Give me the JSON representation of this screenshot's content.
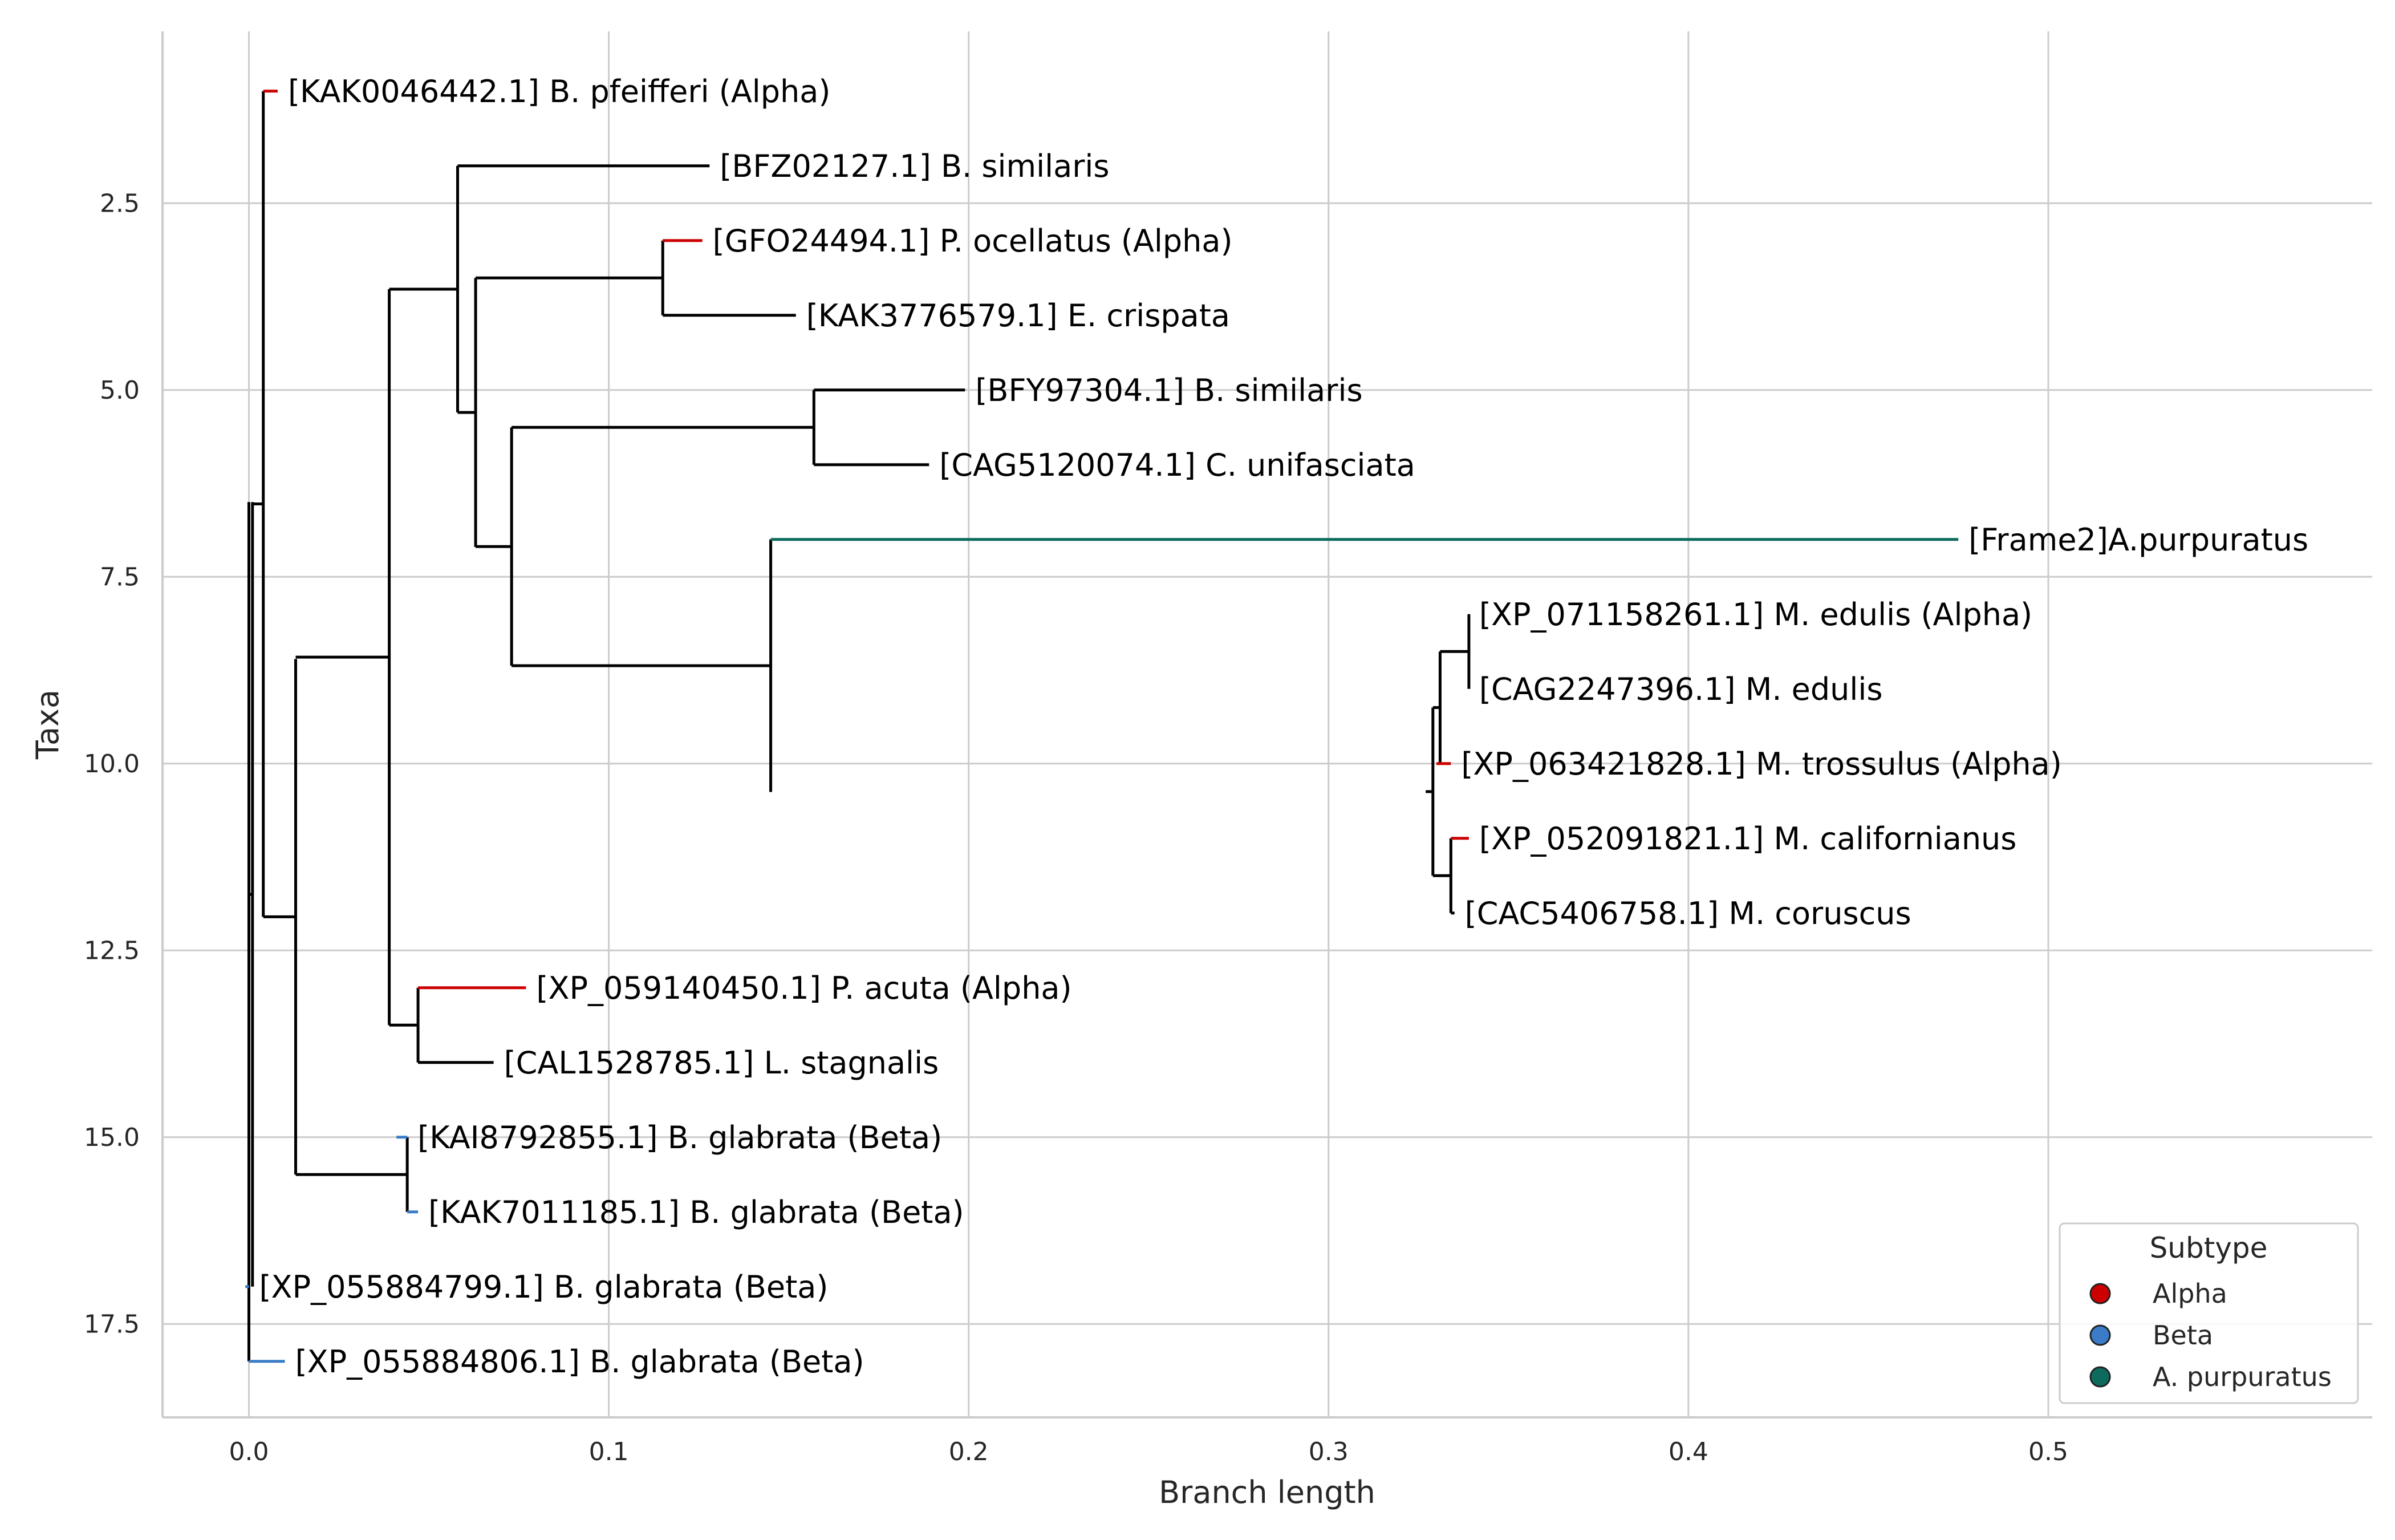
{
  "chart_data": {
    "type": "tree",
    "xlabel": "Branch length",
    "ylabel": "Taxa",
    "xlim": [
      -0.024,
      0.59
    ],
    "ylim": [
      18.75,
      0.2
    ],
    "xticks": [
      0.0,
      0.1,
      0.2,
      0.3,
      0.4,
      0.5
    ],
    "xtick_labels": [
      "0.0",
      "0.1",
      "0.2",
      "0.3",
      "0.4",
      "0.5"
    ],
    "yticks": [
      2.5,
      5.0,
      7.5,
      10.0,
      12.5,
      15.0,
      17.5
    ],
    "ytick_labels": [
      "2.5",
      "5.0",
      "7.5",
      "10.0",
      "12.5",
      "15.0",
      "17.5"
    ],
    "grid": true,
    "colors": {
      "Alpha": "#cc0000",
      "Beta": "#3a7cc8",
      "A. purpuratus": "#0d6b5e",
      "default": "#000000"
    },
    "legend": {
      "title": "Subtype",
      "placement": "lower-right",
      "entries": [
        {
          "label": "Alpha",
          "color": "#cc0000"
        },
        {
          "label": "Beta",
          "color": "#3a7cc8"
        },
        {
          "label": "A. purpuratus",
          "color": "#0d6b5e"
        }
      ]
    },
    "leaves": [
      {
        "label": "[KAK0046442.1] B. pfeifferi (Alpha)",
        "y": 1,
        "x_start": 0.004,
        "x_end": 0.008,
        "subtype": "Alpha"
      },
      {
        "label": "[BFZ02127.1] B. similaris",
        "y": 2,
        "x_start": 0.058,
        "x_end": 0.128,
        "subtype": null
      },
      {
        "label": "[GFO24494.1] P. ocellatus (Alpha)",
        "y": 3,
        "x_start": 0.115,
        "x_end": 0.126,
        "subtype": "Alpha"
      },
      {
        "label": "[KAK3776579.1] E. crispata",
        "y": 4,
        "x_start": 0.115,
        "x_end": 0.152,
        "subtype": null
      },
      {
        "label": "[BFY97304.1] B. similaris",
        "y": 5,
        "x_start": 0.157,
        "x_end": 0.199,
        "subtype": null
      },
      {
        "label": "[CAG5120074.1] C. unifasciata",
        "y": 6,
        "x_start": 0.157,
        "x_end": 0.189,
        "subtype": null
      },
      {
        "label": "[Frame2]A.purpuratus",
        "y": 7,
        "x_start": 0.145,
        "x_end": 0.475,
        "subtype": "A. purpuratus"
      },
      {
        "label": "[XP_071158261.1] M. edulis (Alpha)",
        "y": 8,
        "x_start": 0.339,
        "x_end": 0.339,
        "subtype": null
      },
      {
        "label": "[CAG2247396.1] M. edulis",
        "y": 9,
        "x_start": 0.339,
        "x_end": 0.339,
        "subtype": null
      },
      {
        "label": "[XP_063421828.1] M. trossulus (Alpha)",
        "y": 10,
        "x_start": 0.33,
        "x_end": 0.334,
        "subtype": "Alpha"
      },
      {
        "label": "[XP_052091821.1] M. californianus",
        "y": 11,
        "x_start": 0.334,
        "x_end": 0.339,
        "subtype": "Alpha"
      },
      {
        "label": "[CAC5406758.1] M. coruscus",
        "y": 12,
        "x_start": 0.334,
        "x_end": 0.335,
        "subtype": null
      },
      {
        "label": "[XP_059140450.1] P. acuta (Alpha)",
        "y": 13,
        "x_start": 0.047,
        "x_end": 0.077,
        "subtype": "Alpha"
      },
      {
        "label": "[CAL1528785.1] L. stagnalis",
        "y": 14,
        "x_start": 0.047,
        "x_end": 0.068,
        "subtype": null
      },
      {
        "label": "[KAI8792855.1] B. glabrata (Beta)",
        "y": 15,
        "x_start": 0.041,
        "x_end": 0.044,
        "subtype": "Beta"
      },
      {
        "label": "[KAK7011185.1] B. glabrata (Beta)",
        "y": 16,
        "x_start": 0.044,
        "x_end": 0.047,
        "subtype": "Beta"
      },
      {
        "label": "[XP_055884799.1] B. glabrata (Beta)",
        "y": 17,
        "x_start": -0.001,
        "x_end": 0.0,
        "subtype": "Beta"
      },
      {
        "label": "[XP_055884806.1] B. glabrata (Beta)",
        "y": 18,
        "x_start": 0.0,
        "x_end": 0.01,
        "subtype": "Beta"
      }
    ],
    "internal_nodes": [
      {
        "x": 0.339,
        "y_min": 8.0,
        "y_max": 9.0,
        "parent_x": 0.331
      },
      {
        "x": 0.334,
        "y_min": 11.0,
        "y_max": 12.0,
        "parent_x": 0.329
      },
      {
        "x": 0.331,
        "y_min": 8.5,
        "y_max": 10.0,
        "parent_x": 0.329
      },
      {
        "x": 0.329,
        "y_min": 9.25,
        "y_max": 11.5,
        "parent_x": 0.327
      },
      {
        "x": 0.145,
        "y_min": 7.0,
        "y_max": 10.38,
        "parent_x": 0.073
      },
      {
        "x": 0.157,
        "y_min": 5.0,
        "y_max": 6.0,
        "parent_x": 0.073
      },
      {
        "x": 0.073,
        "y_min": 5.5,
        "y_max": 8.69,
        "parent_x": 0.063
      },
      {
        "x": 0.115,
        "y_min": 3.0,
        "y_max": 4.0,
        "parent_x": 0.063
      },
      {
        "x": 0.063,
        "y_min": 3.5,
        "y_max": 7.1,
        "parent_x": 0.058
      },
      {
        "x": 0.058,
        "y_min": 2.0,
        "y_max": 5.3,
        "parent_x": 0.039
      },
      {
        "x": 0.047,
        "y_min": 13.0,
        "y_max": 14.0,
        "parent_x": 0.039
      },
      {
        "x": 0.039,
        "y_min": 3.65,
        "y_max": 13.5,
        "parent_x": 0.013
      },
      {
        "x": 0.044,
        "y_min": 15.0,
        "y_max": 16.0,
        "parent_x": 0.013
      },
      {
        "x": 0.013,
        "y_min": 8.6,
        "y_max": 15.5,
        "parent_x": 0.004
      },
      {
        "x": 0.004,
        "y_min": 1.0,
        "y_max": 12.05,
        "parent_x": 0.001
      },
      {
        "x": 0.001,
        "y_min": 6.5,
        "y_max": 17.0,
        "parent_x": 0.0
      },
      {
        "x": 0.0,
        "y_min": 6.5,
        "y_max": 18.0,
        "parent_x": null
      }
    ]
  }
}
